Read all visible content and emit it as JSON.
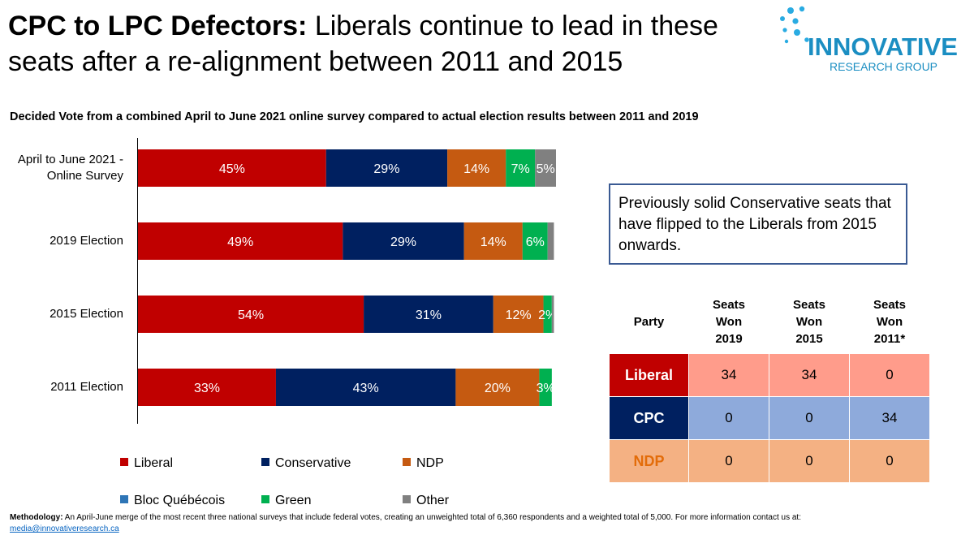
{
  "title": {
    "bold": "CPC to LPC Defectors:",
    "rest": " Liberals continue to lead in these seats after a re-alignment between 2011 and 2015"
  },
  "logo": {
    "word": "INNOVATIVE",
    "sub": "RESEARCH GROUP",
    "color": "#1b8ec2",
    "dot_color": "#29abe2"
  },
  "subtitle": "Decided Vote from a combined April to June 2021 online survey compared to actual election results between 2011 and 2019",
  "chart_data": {
    "type": "bar",
    "orientation": "horizontal",
    "stacked": true,
    "categories": [
      "April to June 2021 - Online Survey",
      "2019 Election",
      "2015 Election",
      "2011 Election"
    ],
    "series": [
      {
        "name": "Liberal",
        "color": "#c00000",
        "values": [
          45,
          49,
          54,
          33
        ],
        "labels": [
          "45%",
          "49%",
          "54%",
          "33%"
        ]
      },
      {
        "name": "Conservative",
        "color": "#002060",
        "values": [
          29,
          29,
          31,
          43
        ],
        "labels": [
          "29%",
          "29%",
          "31%",
          "43%"
        ]
      },
      {
        "name": "NDP",
        "color": "#c55a11",
        "values": [
          14,
          14,
          12,
          20
        ],
        "labels": [
          "14%",
          "14%",
          "12%",
          "20%"
        ]
      },
      {
        "name": "Bloc Québécois",
        "color": "#2e75b6",
        "values": [
          0,
          0,
          0,
          0
        ],
        "labels": [
          "",
          "",
          "",
          ""
        ]
      },
      {
        "name": "Green",
        "color": "#00b050",
        "values": [
          7,
          6,
          2,
          3
        ],
        "labels": [
          "7%",
          "6%",
          "2%",
          "3%"
        ]
      },
      {
        "name": "Other",
        "color": "#808080",
        "values": [
          5,
          1.5,
          0.5,
          0
        ],
        "labels": [
          "5%",
          "",
          "",
          ""
        ]
      }
    ],
    "xlim": [
      0,
      100
    ],
    "grid": false,
    "legend_position": "bottom"
  },
  "callout": "Previously solid Conservative seats that have flipped to the Liberals from 2015 onwards.",
  "seats_table": {
    "header_party": "Party",
    "headers": [
      [
        "Seats",
        "Won",
        "2019"
      ],
      [
        "Seats",
        "Won",
        "2015"
      ],
      [
        "Seats",
        "Won",
        "2011*"
      ]
    ],
    "rows": [
      {
        "party": "Liberal",
        "values": [
          "34",
          "34",
          "0"
        ],
        "party_bg": "#c00000",
        "party_fg": "#ffffff",
        "cell_bg": "#ff9c8b"
      },
      {
        "party": "CPC",
        "values": [
          "0",
          "0",
          "34"
        ],
        "party_bg": "#002060",
        "party_fg": "#ffffff",
        "cell_bg": "#8eaadb"
      },
      {
        "party": "NDP",
        "values": [
          "0",
          "0",
          "0"
        ],
        "party_bg": "#f4b183",
        "party_fg": "#e36c09",
        "cell_bg": "#f4b183"
      }
    ]
  },
  "methodology": {
    "label": "Methodology:",
    "text": " An April-June merge of the most recent three national surveys that include federal votes, creating an unweighted total of 6,360 respondents and a weighted total of 5,000. For more information contact us at: ",
    "email": "media@innovativeresearch.ca"
  }
}
